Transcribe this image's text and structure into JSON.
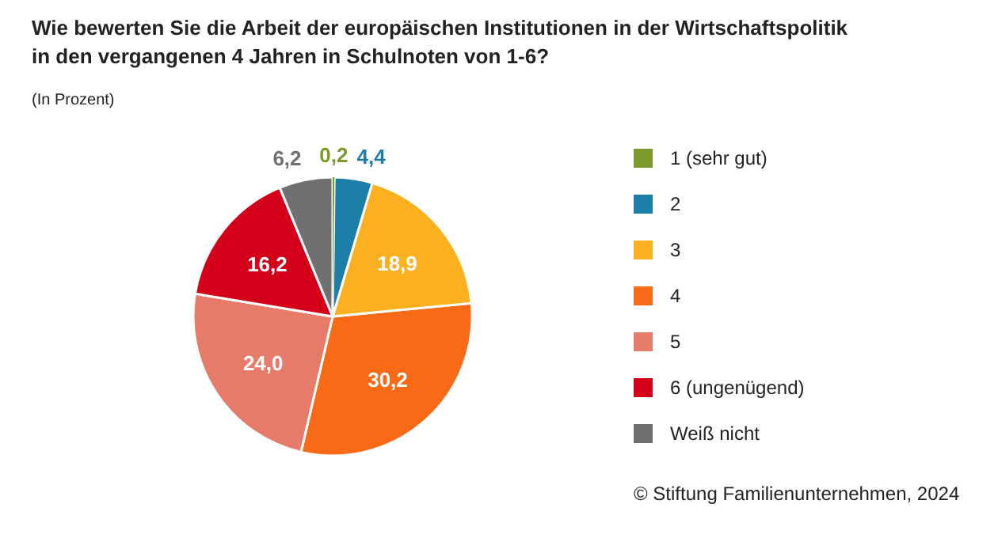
{
  "chart_data": {
    "type": "pie",
    "title": "Wie bewerten Sie die Arbeit der europäischen Institutionen in der Wirtschaftspolitik in den vergangenen 4 Jahren in Schulnoten von 1-6?",
    "subtitle": "(In Prozent)",
    "categories": [
      "1 (sehr gut)",
      "2",
      "3",
      "4",
      "5",
      "6 (ungenügend)",
      "Weiß nicht"
    ],
    "values": [
      0.2,
      4.4,
      18.9,
      30.2,
      24.0,
      16.2,
      6.2
    ],
    "value_labels": [
      "0,2",
      "4,4",
      "18,9",
      "30,2",
      "24,0",
      "16,2",
      "6,2"
    ],
    "colors": [
      "#7a9a2a",
      "#1a7ea6",
      "#fbb01f",
      "#f96a16",
      "#e67b6a",
      "#d4001a",
      "#707070"
    ],
    "legend": "right",
    "annotations": [
      "© Stiftung Familienunternehmen, 2024"
    ]
  }
}
